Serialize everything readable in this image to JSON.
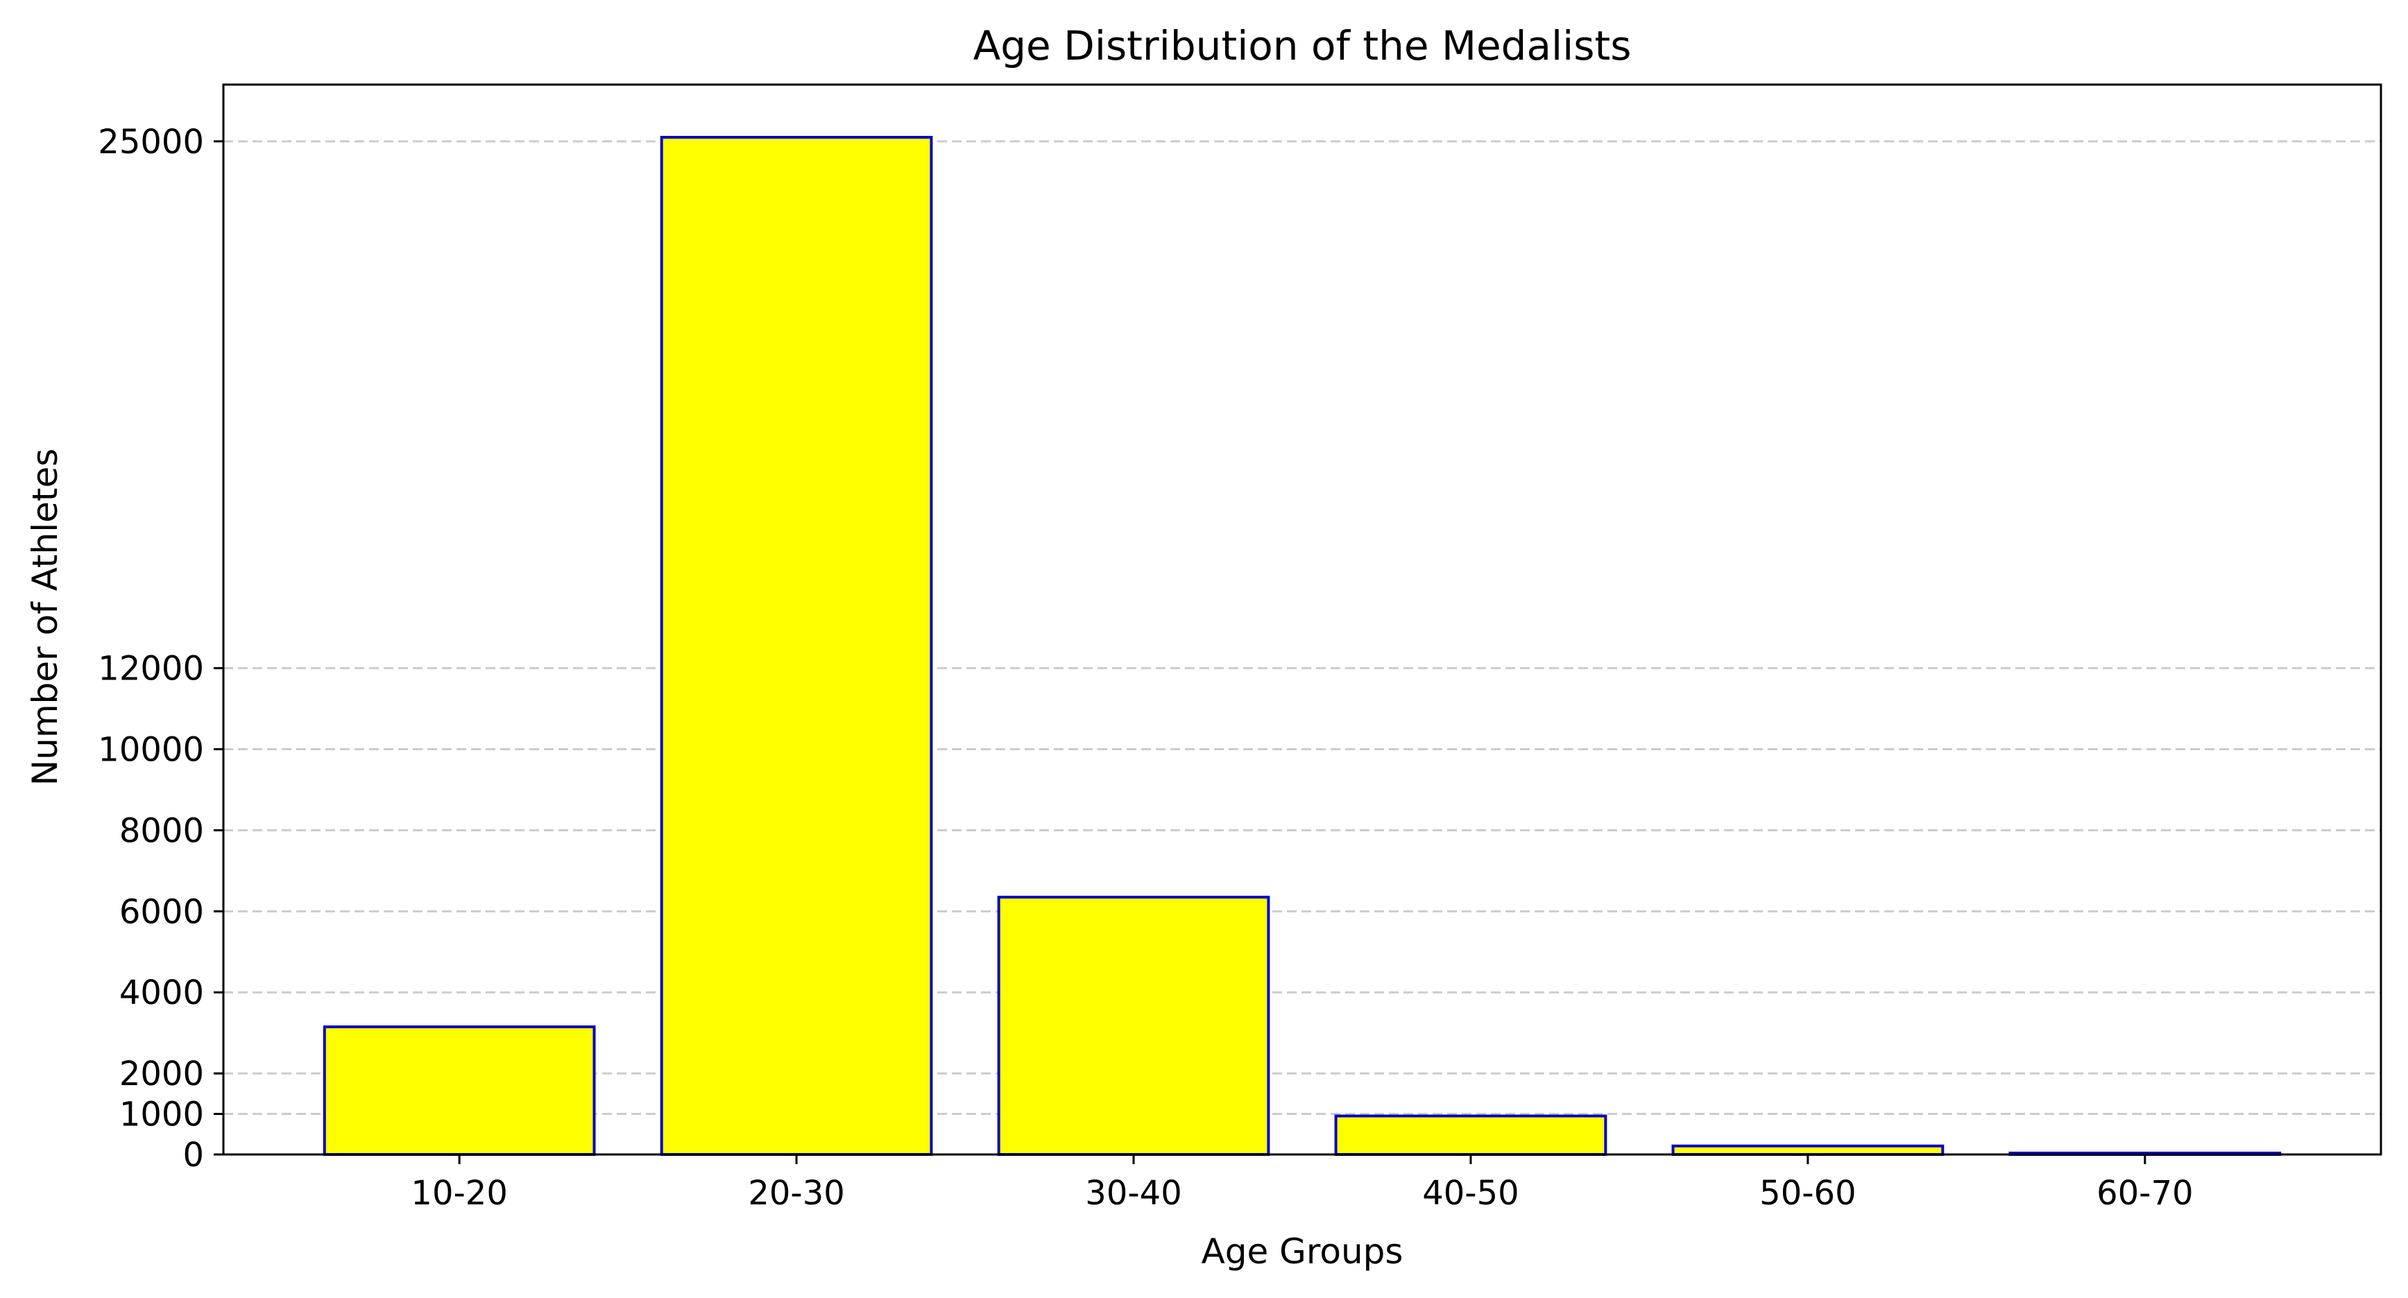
{
  "chart_data": {
    "type": "bar",
    "title": "Age Distribution of the Medalists",
    "xlabel": "Age Groups",
    "ylabel": "Number of Athletes",
    "categories": [
      "10-20",
      "20-30",
      "30-40",
      "40-50",
      "50-60",
      "60-70"
    ],
    "values": [
      3150,
      25100,
      6350,
      950,
      210,
      35
    ],
    "yticks": [
      0,
      1000,
      2000,
      4000,
      6000,
      8000,
      10000,
      12000,
      25000
    ],
    "ytick_labels": [
      "0",
      "1000",
      "2000",
      "4000",
      "6000",
      "8000",
      "10000",
      "12000",
      "25000"
    ],
    "ylim": [
      0,
      26400
    ],
    "grid": {
      "axis": "y",
      "style": "dashed"
    },
    "colors": {
      "bar_fill": "#ffff00",
      "bar_edge": "#0000cc",
      "grid": "#cccccc"
    }
  }
}
